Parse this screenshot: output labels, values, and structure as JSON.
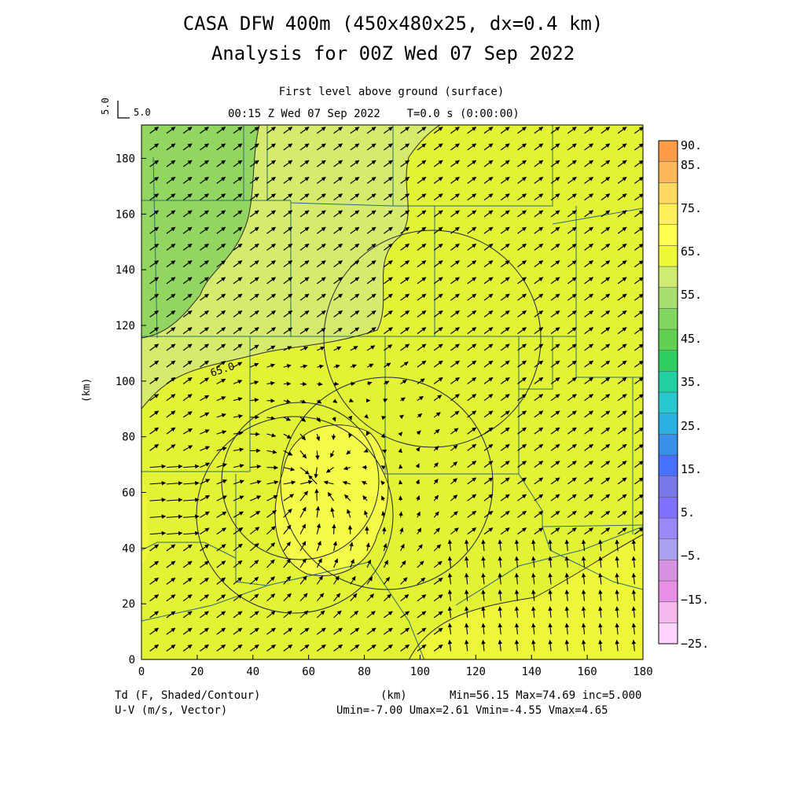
{
  "header": {
    "title_line1": "CASA DFW 400m (450x480x25, dx=0.4 km)",
    "title_line2": "Analysis for 00Z Wed 07 Sep 2022",
    "level_label": "First level above ground (surface)",
    "time_label": "00:15 Z Wed 07 Sep 2022    T=0.0 s (0:00:00)"
  },
  "vector_key": {
    "rotated_label": "5.0",
    "label": "5.0"
  },
  "footer": {
    "field_line1": "Td (F, Shaded/Contour)",
    "field_line2": "U-V (m/s, Vector)",
    "units": "(km)",
    "stats_line1": "Min=56.15 Max=74.69 inc=5.000",
    "stats_line2": "Umin=-7.00 Umax=2.61 Vmin=-4.55 Vmax=4.65"
  },
  "chart_data": {
    "type": "heatmap",
    "field": "Td",
    "xlabel": "",
    "ylabel": "(km)",
    "xlim": [
      0,
      180
    ],
    "ylim": [
      0,
      192
    ],
    "x_ticks": [
      0,
      20,
      40,
      60,
      80,
      100,
      120,
      140,
      160,
      180
    ],
    "y_ticks": [
      0,
      20,
      40,
      60,
      80,
      100,
      120,
      140,
      160,
      180
    ],
    "x_tick_labels": [
      "0",
      "20",
      "40",
      "60",
      "80",
      "100",
      "120",
      "140",
      "160",
      "180"
    ],
    "y_tick_labels": [
      "0",
      "20",
      "40",
      "60",
      "80",
      "100",
      "120",
      "140",
      "160",
      "180"
    ],
    "contour_labels": [
      {
        "label": "65.0",
        "x": 28,
        "y": 104
      }
    ],
    "radar_rings": [
      {
        "cx": 105,
        "cy": 115,
        "r": 39
      },
      {
        "cx": 88,
        "cy": 63,
        "r": 38
      },
      {
        "cx": 57,
        "cy": 64,
        "r": 28
      },
      {
        "cx": 55,
        "cy": 52,
        "r": 35
      }
    ],
    "colorbar": {
      "colors": [
        "#ffd4ff",
        "#f4b8ec",
        "#e890e6",
        "#d890e0",
        "#aaa0f0",
        "#9888f8",
        "#8070ff",
        "#7878e8",
        "#4870ff",
        "#3890e8",
        "#28b0e0",
        "#28c8d0",
        "#20d0a0",
        "#30d060",
        "#60d050",
        "#80d860",
        "#a8e070",
        "#d0ec70",
        "#ecf838",
        "#ffff50",
        "#fff05a",
        "#ffd860",
        "#ffb858",
        "#ff9c48"
      ],
      "labels": [
        "90.",
        "85.",
        "75.",
        "65.",
        "55.",
        "45.",
        "35.",
        "25.",
        "15.",
        "5.",
        "−5.",
        "−15.",
        "−25."
      ]
    },
    "vector_field": {
      "units": "m/s",
      "key_length": 5.0,
      "convergence_center": [
        62,
        64
      ]
    }
  }
}
